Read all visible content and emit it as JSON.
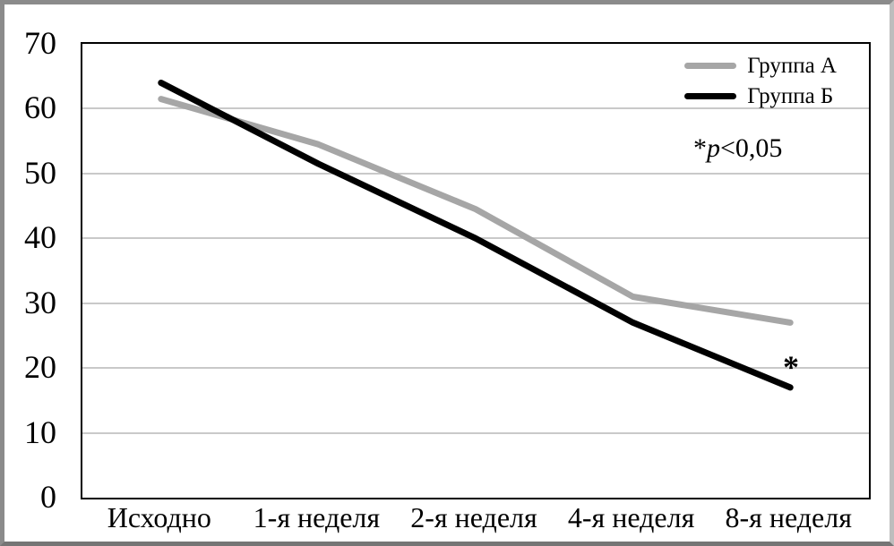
{
  "chart_data": {
    "type": "line",
    "categories": [
      "Исходно",
      "1-я неделя",
      "2-я неделя",
      "4-я неделя",
      "8-я неделя"
    ],
    "series": [
      {
        "name": "Группа А",
        "color": "#a6a6a6",
        "values": [
          61.5,
          54.5,
          44.5,
          31,
          27
        ]
      },
      {
        "name": "Группа Б",
        "color": "#000000",
        "values": [
          64,
          51.5,
          40,
          27,
          17
        ]
      }
    ],
    "ylim": [
      0,
      70
    ],
    "yticks": [
      0,
      10,
      20,
      30,
      40,
      50,
      60,
      70
    ],
    "grid": "horizontal",
    "gridline_color": "#c9c9c9",
    "legend_position": "top-right",
    "line_width": 7,
    "annotation": "*p<0,05",
    "annotation_parts": {
      "star": "*",
      "p": "p",
      "rest": "<0,05"
    },
    "significance_marker": "*",
    "significance_marker_target": "Группа Б @ 8-я неделя"
  }
}
